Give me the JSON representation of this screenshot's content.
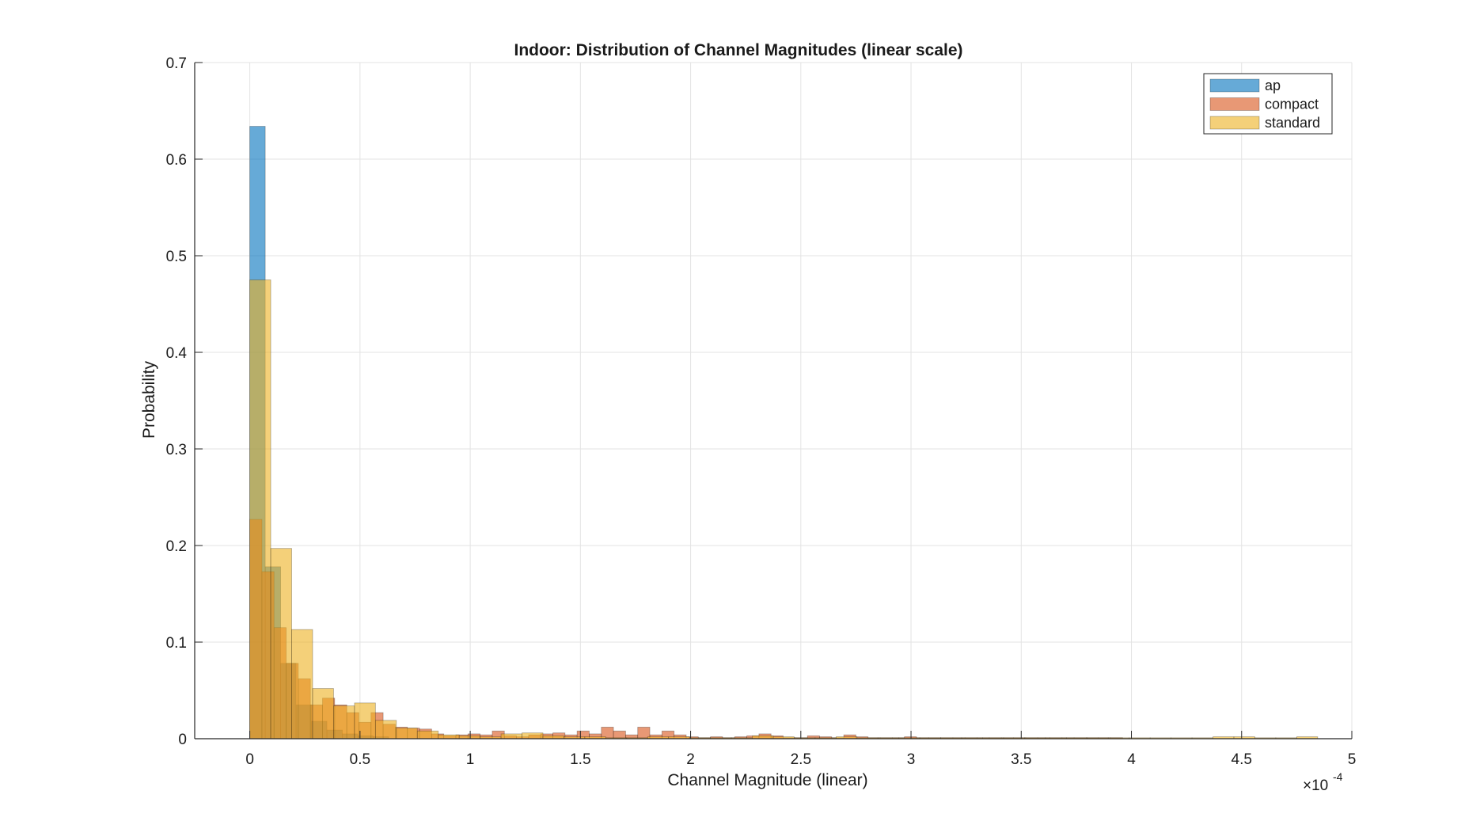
{
  "chart_data": {
    "type": "bar",
    "title": "Indoor: Distribution of Channel Magnitudes (linear scale)",
    "xlabel": "Channel Magnitude (linear)",
    "ylabel": "Probability",
    "x_multiplier": "×10",
    "x_multiplier_exp": "-4",
    "xlim": [
      -0.25,
      5.0
    ],
    "ylim": [
      0,
      0.7
    ],
    "xticks": [
      0,
      0.5,
      1,
      1.5,
      2,
      2.5,
      3,
      3.5,
      4,
      4.5,
      5
    ],
    "xtick_labels": [
      "0",
      "0.5",
      "1",
      "1.5",
      "2",
      "2.5",
      "3",
      "3.5",
      "4",
      "4.5",
      "5"
    ],
    "yticks": [
      0,
      0.1,
      0.2,
      0.3,
      0.4,
      0.5,
      0.6,
      0.7
    ],
    "ytick_labels": [
      "0",
      "0.1",
      "0.2",
      "0.3",
      "0.4",
      "0.5",
      "0.6",
      "0.7"
    ],
    "grid": true,
    "legend_position": "top-right",
    "series": [
      {
        "name": "ap",
        "color": "#0072BD",
        "bin_width": 0.07,
        "bin_start": 0,
        "values": [
          0.634,
          0.178,
          0.078,
          0.035,
          0.018,
          0.009,
          0.005,
          0.003,
          0.002
        ]
      },
      {
        "name": "compact",
        "color": "#D95319",
        "bin_width": 0.055,
        "bin_start": 0,
        "values": [
          0.227,
          0.173,
          0.115,
          0.078,
          0.062,
          0.035,
          0.042,
          0.035,
          0.027,
          0.017,
          0.027,
          0.015,
          0.012,
          0.011,
          0.01,
          0.005,
          0.003,
          0.004,
          0.005,
          0.004,
          0.008,
          0.003,
          0.002,
          0.004,
          0.005,
          0.006,
          0.004,
          0.008,
          0.005,
          0.012,
          0.008,
          0.004,
          0.012,
          0.004,
          0.008,
          0.004,
          0.002,
          0.001,
          0.002,
          0.001,
          0.002,
          0.003,
          0.005,
          0.003,
          0.001,
          0.001,
          0.003,
          0.002,
          0.001,
          0.004,
          0.002,
          0.001,
          0.001,
          0.001,
          0.002,
          0.001,
          0.001,
          0.001,
          0.001,
          0.001,
          0.001,
          0.001,
          0.001,
          0.001,
          0.001,
          0.001,
          0.001,
          0.001,
          0.001,
          0.001,
          0.001,
          0.001
        ]
      },
      {
        "name": "standard",
        "color": "#EDB120",
        "bin_width": 0.095,
        "bin_start": 0,
        "values": [
          0.475,
          0.197,
          0.113,
          0.052,
          0.034,
          0.037,
          0.019,
          0.011,
          0.008,
          0.004,
          0.003,
          0.002,
          0.005,
          0.006,
          0.003,
          0.002,
          0.002,
          0.001,
          0.001,
          0.002,
          0.002,
          0.001,
          0.001,
          0.001,
          0.003,
          0.002,
          0.001,
          0.001,
          0.002,
          0.001,
          0.001,
          0.001,
          0.001,
          0.001,
          0.001,
          0.001,
          0.001,
          0.001,
          0.001,
          0.001,
          0.001,
          0.001,
          0.001,
          0.001,
          0.001,
          0.001,
          0.002,
          0.002,
          0.001,
          0.001,
          0.002
        ]
      }
    ]
  }
}
